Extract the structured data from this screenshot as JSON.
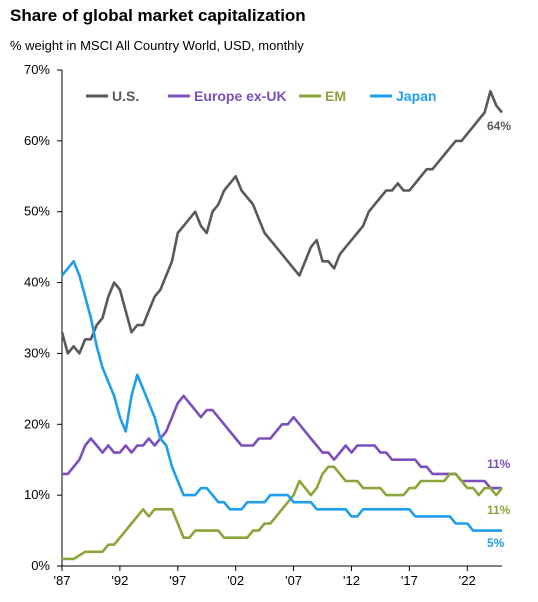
{
  "title": "Share of global market capitalization",
  "subtitle": "% weight in MSCI All Country World, USD, monthly",
  "chart_data": {
    "type": "line",
    "title": "Share of global market capitalization",
    "subtitle": "% weight in MSCI All Country World, USD, monthly",
    "xlabel": "",
    "ylabel": "",
    "xlim": [
      1987,
      2025
    ],
    "ylim": [
      0,
      70
    ],
    "x_ticks": [
      "'87",
      "'92",
      "'97",
      "'02",
      "'07",
      "'12",
      "'17",
      "'22"
    ],
    "y_ticks": [
      "0%",
      "10%",
      "20%",
      "30%",
      "40%",
      "50%",
      "60%",
      "70%"
    ],
    "grid": false,
    "legend_position": "top",
    "series": [
      {
        "name": "U.S.",
        "color": "#595959",
        "end_label": "64%",
        "points": [
          [
            1987.0,
            33
          ],
          [
            1987.5,
            30
          ],
          [
            1988.0,
            31
          ],
          [
            1988.5,
            30
          ],
          [
            1989.0,
            32
          ],
          [
            1989.5,
            32
          ],
          [
            1990.0,
            34
          ],
          [
            1990.5,
            35
          ],
          [
            1991.0,
            38
          ],
          [
            1991.5,
            40
          ],
          [
            1992.0,
            39
          ],
          [
            1992.5,
            36
          ],
          [
            1993.0,
            33
          ],
          [
            1993.5,
            34
          ],
          [
            1994.0,
            34
          ],
          [
            1994.5,
            36
          ],
          [
            1995.0,
            38
          ],
          [
            1995.5,
            39
          ],
          [
            1996.0,
            41
          ],
          [
            1996.5,
            43
          ],
          [
            1997.0,
            47
          ],
          [
            1997.5,
            48
          ],
          [
            1998.0,
            49
          ],
          [
            1998.5,
            50
          ],
          [
            1999.0,
            48
          ],
          [
            1999.5,
            47
          ],
          [
            2000.0,
            50
          ],
          [
            2000.5,
            51
          ],
          [
            2001.0,
            53
          ],
          [
            2001.5,
            54
          ],
          [
            2002.0,
            55
          ],
          [
            2002.5,
            53
          ],
          [
            2003.0,
            52
          ],
          [
            2003.5,
            51
          ],
          [
            2004.0,
            49
          ],
          [
            2004.5,
            47
          ],
          [
            2005.0,
            46
          ],
          [
            2005.5,
            45
          ],
          [
            2006.0,
            44
          ],
          [
            2006.5,
            43
          ],
          [
            2007.0,
            42
          ],
          [
            2007.5,
            41
          ],
          [
            2008.0,
            43
          ],
          [
            2008.5,
            45
          ],
          [
            2009.0,
            46
          ],
          [
            2009.5,
            43
          ],
          [
            2010.0,
            43
          ],
          [
            2010.5,
            42
          ],
          [
            2011.0,
            44
          ],
          [
            2011.5,
            45
          ],
          [
            2012.0,
            46
          ],
          [
            2012.5,
            47
          ],
          [
            2013.0,
            48
          ],
          [
            2013.5,
            50
          ],
          [
            2014.0,
            51
          ],
          [
            2014.5,
            52
          ],
          [
            2015.0,
            53
          ],
          [
            2015.5,
            53
          ],
          [
            2016.0,
            54
          ],
          [
            2016.5,
            53
          ],
          [
            2017.0,
            53
          ],
          [
            2017.5,
            54
          ],
          [
            2018.0,
            55
          ],
          [
            2018.5,
            56
          ],
          [
            2019.0,
            56
          ],
          [
            2019.5,
            57
          ],
          [
            2020.0,
            58
          ],
          [
            2020.5,
            59
          ],
          [
            2021.0,
            60
          ],
          [
            2021.5,
            60
          ],
          [
            2022.0,
            61
          ],
          [
            2022.5,
            62
          ],
          [
            2023.0,
            63
          ],
          [
            2023.5,
            64
          ],
          [
            2024.0,
            67
          ],
          [
            2024.5,
            65
          ],
          [
            2025.0,
            64
          ]
        ]
      },
      {
        "name": "Europe ex-UK",
        "color": "#7b4fbd",
        "end_label": "11%",
        "points": [
          [
            1987.0,
            13
          ],
          [
            1987.5,
            13
          ],
          [
            1988.0,
            14
          ],
          [
            1988.5,
            15
          ],
          [
            1989.0,
            17
          ],
          [
            1989.5,
            18
          ],
          [
            1990.0,
            17
          ],
          [
            1990.5,
            16
          ],
          [
            1991.0,
            17
          ],
          [
            1991.5,
            16
          ],
          [
            1992.0,
            16
          ],
          [
            1992.5,
            17
          ],
          [
            1993.0,
            16
          ],
          [
            1993.5,
            17
          ],
          [
            1994.0,
            17
          ],
          [
            1994.5,
            18
          ],
          [
            1995.0,
            17
          ],
          [
            1995.5,
            18
          ],
          [
            1996.0,
            19
          ],
          [
            1996.5,
            21
          ],
          [
            1997.0,
            23
          ],
          [
            1997.5,
            24
          ],
          [
            1998.0,
            23
          ],
          [
            1998.5,
            22
          ],
          [
            1999.0,
            21
          ],
          [
            1999.5,
            22
          ],
          [
            2000.0,
            22
          ],
          [
            2000.5,
            21
          ],
          [
            2001.0,
            20
          ],
          [
            2001.5,
            19
          ],
          [
            2002.0,
            18
          ],
          [
            2002.5,
            17
          ],
          [
            2003.0,
            17
          ],
          [
            2003.5,
            17
          ],
          [
            2004.0,
            18
          ],
          [
            2004.5,
            18
          ],
          [
            2005.0,
            18
          ],
          [
            2005.5,
            19
          ],
          [
            2006.0,
            20
          ],
          [
            2006.5,
            20
          ],
          [
            2007.0,
            21
          ],
          [
            2007.5,
            20
          ],
          [
            2008.0,
            19
          ],
          [
            2008.5,
            18
          ],
          [
            2009.0,
            17
          ],
          [
            2009.5,
            16
          ],
          [
            2010.0,
            16
          ],
          [
            2010.5,
            15
          ],
          [
            2011.0,
            16
          ],
          [
            2011.5,
            17
          ],
          [
            2012.0,
            16
          ],
          [
            2012.5,
            17
          ],
          [
            2013.0,
            17
          ],
          [
            2013.5,
            17
          ],
          [
            2014.0,
            17
          ],
          [
            2014.5,
            16
          ],
          [
            2015.0,
            16
          ],
          [
            2015.5,
            15
          ],
          [
            2016.0,
            15
          ],
          [
            2016.5,
            15
          ],
          [
            2017.0,
            15
          ],
          [
            2017.5,
            15
          ],
          [
            2018.0,
            14
          ],
          [
            2018.5,
            14
          ],
          [
            2019.0,
            13
          ],
          [
            2019.5,
            13
          ],
          [
            2020.0,
            13
          ],
          [
            2020.5,
            13
          ],
          [
            2021.0,
            13
          ],
          [
            2021.5,
            12
          ],
          [
            2022.0,
            12
          ],
          [
            2022.5,
            12
          ],
          [
            2023.0,
            12
          ],
          [
            2023.5,
            12
          ],
          [
            2024.0,
            11
          ],
          [
            2024.5,
            11
          ],
          [
            2025.0,
            11
          ]
        ]
      },
      {
        "name": "EM",
        "color": "#8aa63a",
        "end_label": "11%",
        "points": [
          [
            1987.0,
            1
          ],
          [
            1987.5,
            1
          ],
          [
            1988.0,
            1
          ],
          [
            1988.5,
            1.5
          ],
          [
            1989.0,
            2
          ],
          [
            1989.5,
            2
          ],
          [
            1990.0,
            2
          ],
          [
            1990.5,
            2
          ],
          [
            1991.0,
            3
          ],
          [
            1991.5,
            3
          ],
          [
            1992.0,
            4
          ],
          [
            1992.5,
            5
          ],
          [
            1993.0,
            6
          ],
          [
            1993.5,
            7
          ],
          [
            1994.0,
            8
          ],
          [
            1994.5,
            7
          ],
          [
            1995.0,
            8
          ],
          [
            1995.5,
            8
          ],
          [
            1996.0,
            8
          ],
          [
            1996.5,
            8
          ],
          [
            1997.0,
            6
          ],
          [
            1997.5,
            4
          ],
          [
            1998.0,
            4
          ],
          [
            1998.5,
            5
          ],
          [
            1999.0,
            5
          ],
          [
            1999.5,
            5
          ],
          [
            2000.0,
            5
          ],
          [
            2000.5,
            5
          ],
          [
            2001.0,
            4
          ],
          [
            2001.5,
            4
          ],
          [
            2002.0,
            4
          ],
          [
            2002.5,
            4
          ],
          [
            2003.0,
            4
          ],
          [
            2003.5,
            5
          ],
          [
            2004.0,
            5
          ],
          [
            2004.5,
            6
          ],
          [
            2005.0,
            6
          ],
          [
            2005.5,
            7
          ],
          [
            2006.0,
            8
          ],
          [
            2006.5,
            9
          ],
          [
            2007.0,
            10
          ],
          [
            2007.5,
            12
          ],
          [
            2008.0,
            11
          ],
          [
            2008.5,
            10
          ],
          [
            2009.0,
            11
          ],
          [
            2009.5,
            13
          ],
          [
            2010.0,
            14
          ],
          [
            2010.5,
            14
          ],
          [
            2011.0,
            13
          ],
          [
            2011.5,
            12
          ],
          [
            2012.0,
            12
          ],
          [
            2012.5,
            12
          ],
          [
            2013.0,
            11
          ],
          [
            2013.5,
            11
          ],
          [
            2014.0,
            11
          ],
          [
            2014.5,
            11
          ],
          [
            2015.0,
            10
          ],
          [
            2015.5,
            10
          ],
          [
            2016.0,
            10
          ],
          [
            2016.5,
            10
          ],
          [
            2017.0,
            11
          ],
          [
            2017.5,
            11
          ],
          [
            2018.0,
            12
          ],
          [
            2018.5,
            12
          ],
          [
            2019.0,
            12
          ],
          [
            2019.5,
            12
          ],
          [
            2020.0,
            12
          ],
          [
            2020.5,
            13
          ],
          [
            2021.0,
            13
          ],
          [
            2021.5,
            12
          ],
          [
            2022.0,
            11
          ],
          [
            2022.5,
            11
          ],
          [
            2023.0,
            10
          ],
          [
            2023.5,
            11
          ],
          [
            2024.0,
            11
          ],
          [
            2024.5,
            10
          ],
          [
            2025.0,
            11
          ]
        ]
      },
      {
        "name": "Japan",
        "color": "#1f9fea",
        "end_label": "5%",
        "points": [
          [
            1987.0,
            41
          ],
          [
            1987.5,
            42
          ],
          [
            1988.0,
            43
          ],
          [
            1988.5,
            41
          ],
          [
            1989.0,
            38
          ],
          [
            1989.5,
            35
          ],
          [
            1990.0,
            31
          ],
          [
            1990.5,
            28
          ],
          [
            1991.0,
            26
          ],
          [
            1991.5,
            24
          ],
          [
            1992.0,
            21
          ],
          [
            1992.5,
            19
          ],
          [
            1993.0,
            24
          ],
          [
            1993.5,
            27
          ],
          [
            1994.0,
            25
          ],
          [
            1994.5,
            23
          ],
          [
            1995.0,
            21
          ],
          [
            1995.5,
            18
          ],
          [
            1996.0,
            17
          ],
          [
            1996.5,
            14
          ],
          [
            1997.0,
            12
          ],
          [
            1997.5,
            10
          ],
          [
            1998.0,
            10
          ],
          [
            1998.5,
            10
          ],
          [
            1999.0,
            11
          ],
          [
            1999.5,
            11
          ],
          [
            2000.0,
            10
          ],
          [
            2000.5,
            9
          ],
          [
            2001.0,
            9
          ],
          [
            2001.5,
            8
          ],
          [
            2002.0,
            8
          ],
          [
            2002.5,
            8
          ],
          [
            2003.0,
            9
          ],
          [
            2003.5,
            9
          ],
          [
            2004.0,
            9
          ],
          [
            2004.5,
            9
          ],
          [
            2005.0,
            10
          ],
          [
            2005.5,
            10
          ],
          [
            2006.0,
            10
          ],
          [
            2006.5,
            10
          ],
          [
            2007.0,
            9
          ],
          [
            2007.5,
            9
          ],
          [
            2008.0,
            9
          ],
          [
            2008.5,
            9
          ],
          [
            2009.0,
            8
          ],
          [
            2009.5,
            8
          ],
          [
            2010.0,
            8
          ],
          [
            2010.5,
            8
          ],
          [
            2011.0,
            8
          ],
          [
            2011.5,
            8
          ],
          [
            2012.0,
            7
          ],
          [
            2012.5,
            7
          ],
          [
            2013.0,
            8
          ],
          [
            2013.5,
            8
          ],
          [
            2014.0,
            8
          ],
          [
            2014.5,
            8
          ],
          [
            2015.0,
            8
          ],
          [
            2015.5,
            8
          ],
          [
            2016.0,
            8
          ],
          [
            2016.5,
            8
          ],
          [
            2017.0,
            8
          ],
          [
            2017.5,
            7
          ],
          [
            2018.0,
            7
          ],
          [
            2018.5,
            7
          ],
          [
            2019.0,
            7
          ],
          [
            2019.5,
            7
          ],
          [
            2020.0,
            7
          ],
          [
            2020.5,
            7
          ],
          [
            2021.0,
            6
          ],
          [
            2021.5,
            6
          ],
          [
            2022.0,
            6
          ],
          [
            2022.5,
            5
          ],
          [
            2023.0,
            5
          ],
          [
            2023.5,
            5
          ],
          [
            2024.0,
            5
          ],
          [
            2024.5,
            5
          ],
          [
            2025.0,
            5
          ]
        ]
      }
    ]
  }
}
